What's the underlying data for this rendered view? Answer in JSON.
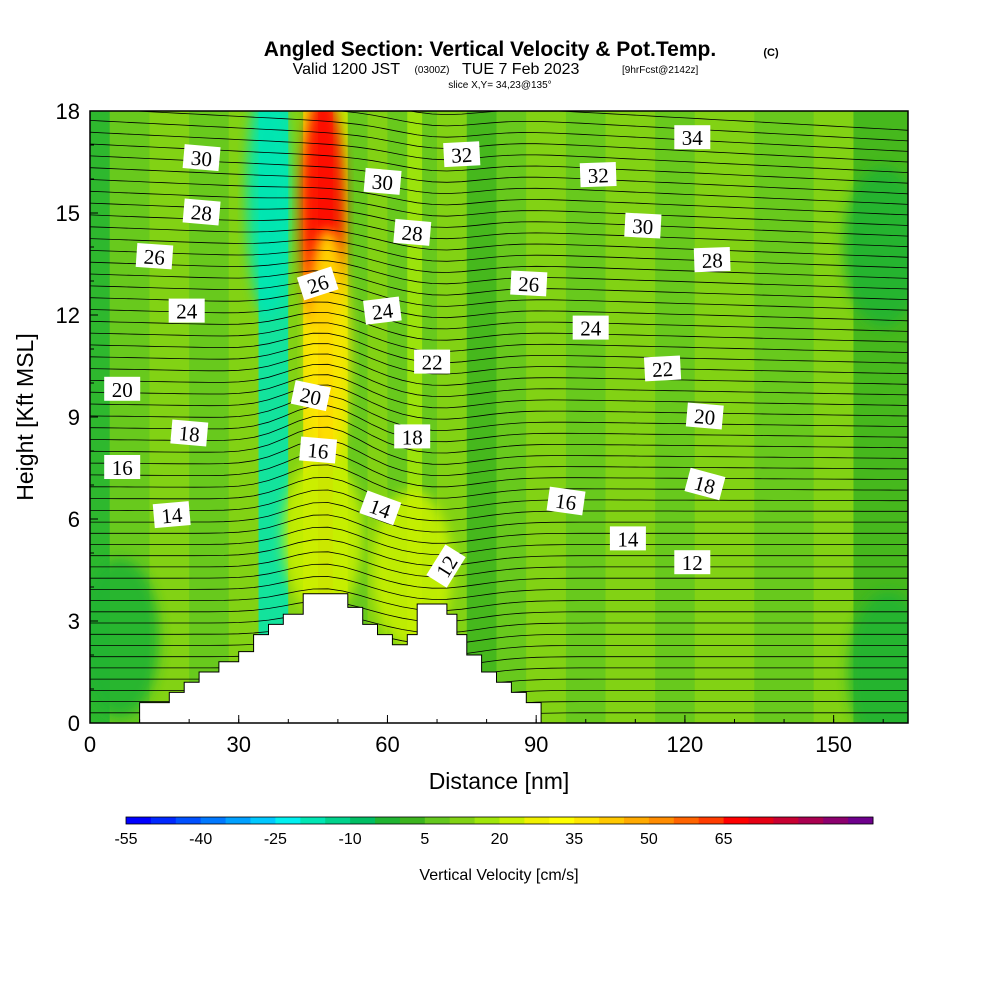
{
  "title": {
    "main": "Angled Section: Vertical Velocity & Pot.Temp.",
    "copyright": "(C)",
    "valid_prefix": "Valid 1200 JST",
    "valid_utc": "(0300Z)",
    "valid_date": "TUE 7 Feb 2023",
    "forecast": "[9hrFcst@2142z]",
    "slice": "slice X,Y= 34,23@135°"
  },
  "chart_data": {
    "type": "heatmap",
    "xlabel": "Distance [nm]",
    "ylabel": "Height [Kft MSL]",
    "xlim": [
      0,
      165
    ],
    "ylim": [
      0,
      18
    ],
    "x_ticks": [
      "0",
      "30",
      "60",
      "90",
      "120",
      "150"
    ],
    "x_tick_values": [
      0,
      30,
      60,
      90,
      120,
      150
    ],
    "y_ticks": [
      "0",
      "3",
      "6",
      "9",
      "12",
      "15",
      "18"
    ],
    "y_tick_values": [
      0,
      3,
      6,
      9,
      12,
      15,
      18
    ],
    "colorbar": {
      "title": "Vertical Velocity [cm/s]",
      "labels": [
        "-55",
        "-40",
        "-25",
        "-10",
        "5",
        "20",
        "35",
        "50",
        "65"
      ],
      "colors": [
        "#0000ff",
        "#0028ff",
        "#0050ff",
        "#0078ff",
        "#00a0ff",
        "#00c8ff",
        "#00f0f0",
        "#00e6b4",
        "#00d28c",
        "#00be64",
        "#20b432",
        "#3cb41e",
        "#64c81e",
        "#82d214",
        "#a0e60a",
        "#c8f000",
        "#f0f000",
        "#ffff00",
        "#ffe600",
        "#ffc800",
        "#ffaa00",
        "#ff8c00",
        "#ff6400",
        "#ff3c00",
        "#ff0000",
        "#e60014",
        "#c80032",
        "#aa0050",
        "#8c006e",
        "#6e008c"
      ]
    },
    "terrain": [
      [
        10,
        0
      ],
      [
        10,
        0.6
      ],
      [
        16,
        0.6
      ],
      [
        16,
        0.9
      ],
      [
        19,
        0.9
      ],
      [
        19,
        1.2
      ],
      [
        22,
        1.2
      ],
      [
        22,
        1.5
      ],
      [
        26,
        1.5
      ],
      [
        26,
        1.8
      ],
      [
        30,
        1.8
      ],
      [
        30,
        2.1
      ],
      [
        33,
        2.1
      ],
      [
        33,
        2.6
      ],
      [
        36,
        2.6
      ],
      [
        36,
        2.9
      ],
      [
        39,
        2.9
      ],
      [
        39,
        3.2
      ],
      [
        43,
        3.2
      ],
      [
        43,
        3.8
      ],
      [
        52,
        3.8
      ],
      [
        52,
        3.4
      ],
      [
        55,
        3.4
      ],
      [
        55,
        2.9
      ],
      [
        58,
        2.9
      ],
      [
        58,
        2.6
      ],
      [
        61,
        2.6
      ],
      [
        61,
        2.3
      ],
      [
        64,
        2.3
      ],
      [
        64,
        2.6
      ],
      [
        66,
        2.6
      ],
      [
        66,
        3.5
      ],
      [
        72,
        3.5
      ],
      [
        72,
        3.2
      ],
      [
        74,
        3.2
      ],
      [
        74,
        2.6
      ],
      [
        76,
        2.6
      ],
      [
        76,
        2.0
      ],
      [
        79,
        2.0
      ],
      [
        79,
        1.5
      ],
      [
        82,
        1.5
      ],
      [
        82,
        1.2
      ],
      [
        85,
        1.2
      ],
      [
        85,
        0.9
      ],
      [
        88,
        0.9
      ],
      [
        88,
        0.6
      ],
      [
        91,
        0.6
      ],
      [
        91,
        0
      ]
    ],
    "velocity_field_cm_s": [
      {
        "x": 36,
        "y": 15.5,
        "value": -25,
        "desc": "downdraft band aloft"
      },
      {
        "x": 47,
        "y": 15.0,
        "value": 60,
        "desc": "updraft core aloft"
      },
      {
        "x": 48,
        "y": 11.0,
        "value": 30,
        "desc": "updraft mid-levels"
      },
      {
        "x": 47,
        "y": 5.5,
        "value": 15,
        "desc": "low-level updraft"
      },
      {
        "x": 65,
        "y": 4.5,
        "value": 15,
        "desc": "low-level updraft"
      },
      {
        "x": 160,
        "y": 14.0,
        "value": -10,
        "desc": "weak descent"
      },
      {
        "x": 6,
        "y": 2.5,
        "value": -10,
        "desc": "weak descent"
      },
      {
        "x": 161,
        "y": 1.5,
        "value": -10,
        "desc": "weak descent"
      }
    ],
    "contour_labels": [
      {
        "text": "30",
        "x": 22.5,
        "y": 16.6,
        "rot": 5
      },
      {
        "text": "32",
        "x": 75.0,
        "y": 16.7,
        "rot": -3
      },
      {
        "text": "34",
        "x": 121.5,
        "y": 17.2,
        "rot": 0
      },
      {
        "text": "30",
        "x": 59.0,
        "y": 15.9,
        "rot": 5
      },
      {
        "text": "32",
        "x": 102.5,
        "y": 16.1,
        "rot": -2
      },
      {
        "text": "28",
        "x": 22.5,
        "y": 15.0,
        "rot": 5
      },
      {
        "text": "30",
        "x": 111.5,
        "y": 14.6,
        "rot": 3
      },
      {
        "text": "28",
        "x": 65.0,
        "y": 14.4,
        "rot": 5
      },
      {
        "text": "26",
        "x": 13.0,
        "y": 13.7,
        "rot": 4
      },
      {
        "text": "28",
        "x": 125.5,
        "y": 13.6,
        "rot": -2
      },
      {
        "text": "26",
        "x": 46.0,
        "y": 12.9,
        "rot": -18
      },
      {
        "text": "26",
        "x": 88.5,
        "y": 12.9,
        "rot": 3
      },
      {
        "text": "24",
        "x": 19.5,
        "y": 12.1,
        "rot": 0
      },
      {
        "text": "24",
        "x": 59.0,
        "y": 12.1,
        "rot": -7
      },
      {
        "text": "24",
        "x": 101.0,
        "y": 11.6,
        "rot": 0
      },
      {
        "text": "22",
        "x": 69.0,
        "y": 10.6,
        "rot": 0
      },
      {
        "text": "22",
        "x": 115.5,
        "y": 10.4,
        "rot": -3
      },
      {
        "text": "20",
        "x": 6.5,
        "y": 9.8,
        "rot": 0
      },
      {
        "text": "20",
        "x": 44.5,
        "y": 9.6,
        "rot": 12
      },
      {
        "text": "20",
        "x": 124.0,
        "y": 9.0,
        "rot": 5
      },
      {
        "text": "18",
        "x": 20.0,
        "y": 8.5,
        "rot": 5
      },
      {
        "text": "18",
        "x": 65.0,
        "y": 8.4,
        "rot": 0
      },
      {
        "text": "16",
        "x": 46.0,
        "y": 8.0,
        "rot": 5
      },
      {
        "text": "16",
        "x": 6.5,
        "y": 7.5,
        "rot": 0
      },
      {
        "text": "18",
        "x": 124.0,
        "y": 7.0,
        "rot": 15
      },
      {
        "text": "16",
        "x": 96.0,
        "y": 6.5,
        "rot": 8
      },
      {
        "text": "14",
        "x": 58.5,
        "y": 6.3,
        "rot": 20
      },
      {
        "text": "14",
        "x": 16.5,
        "y": 6.1,
        "rot": -5
      },
      {
        "text": "14",
        "x": 108.5,
        "y": 5.4,
        "rot": 0
      },
      {
        "text": "12",
        "x": 72.0,
        "y": 4.6,
        "rot": -58
      },
      {
        "text": "12",
        "x": 121.5,
        "y": 4.7,
        "rot": 0
      }
    ]
  }
}
